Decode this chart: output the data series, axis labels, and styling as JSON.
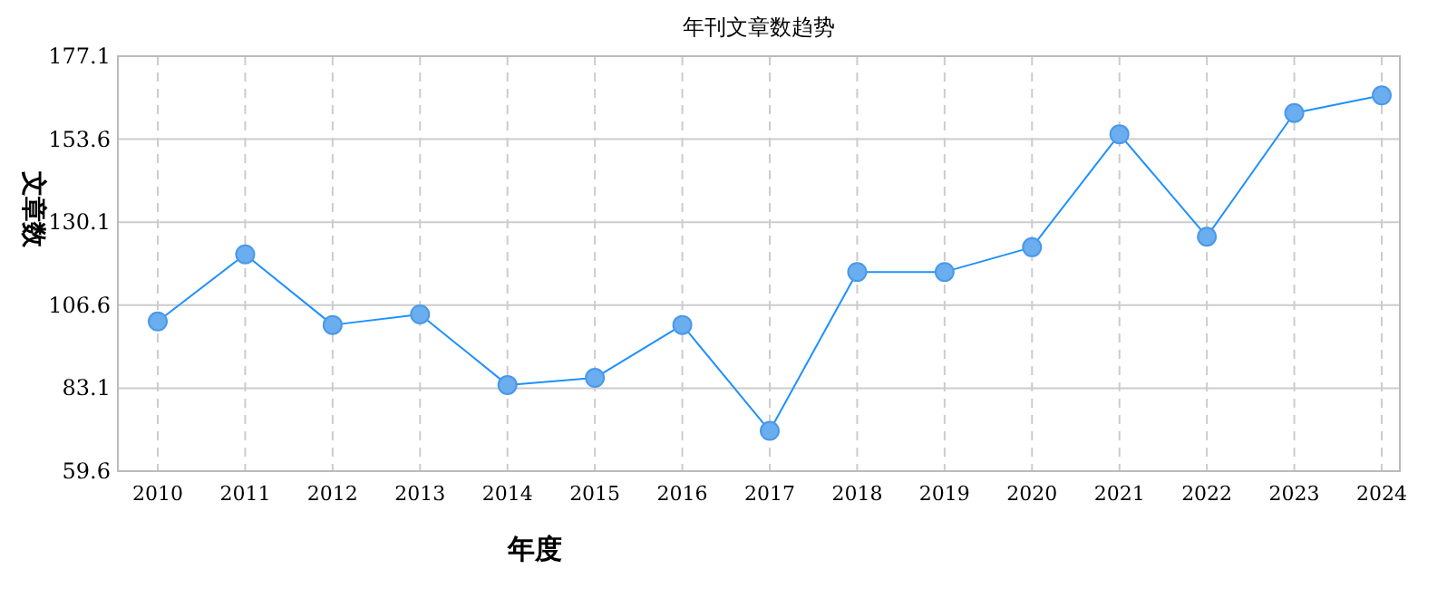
{
  "chart_data": {
    "type": "line",
    "title": "年刊文章数趋势",
    "xlabel": "年度",
    "ylabel": "文章数",
    "categories": [
      "2010",
      "2011",
      "2012",
      "2013",
      "2014",
      "2015",
      "2016",
      "2017",
      "2018",
      "2019",
      "2020",
      "2021",
      "2022",
      "2023",
      "2024"
    ],
    "series": [
      {
        "color": "#1e90ff",
        "values": [
          102,
          121,
          101,
          104,
          84,
          86,
          101,
          71,
          116,
          116,
          123,
          155,
          126,
          161,
          166
        ]
      }
    ],
    "ylim": [
      59.6,
      177.1
    ],
    "yticks": [
      59.6,
      83.1,
      106.6,
      130.1,
      153.6,
      177.1
    ],
    "grid": true,
    "marker": "circle",
    "line_style": "solid"
  }
}
